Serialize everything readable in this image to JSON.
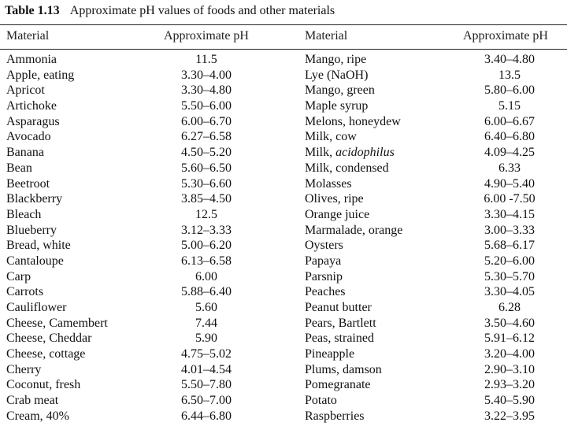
{
  "caption": {
    "label": "Table 1.13",
    "title": "Approximate pH values of foods and other materials"
  },
  "headers": {
    "material_left": "Material",
    "ph_left": "Approximate pH",
    "material_right": "Material",
    "ph_right": "Approximate pH"
  },
  "rows": [
    {
      "m1": "Ammonia",
      "p1": "11.5",
      "m2": "Mango, ripe",
      "p2": "3.40–4.80"
    },
    {
      "m1": "Apple, eating",
      "p1": "3.30–4.00",
      "m2": "Lye (NaOH)",
      "p2": "13.5"
    },
    {
      "m1": "Apricot",
      "p1": "3.30–4.80",
      "m2": "Mango, green",
      "p2": "5.80–6.00"
    },
    {
      "m1": "Artichoke",
      "p1": "5.50–6.00",
      "m2": "Maple syrup",
      "p2": "5.15"
    },
    {
      "m1": "Asparagus",
      "p1": "6.00–6.70",
      "m2": "Melons, honeydew",
      "p2": "6.00–6.67"
    },
    {
      "m1": "Avocado",
      "p1": "6.27–6.58",
      "m2": "Milk, cow",
      "p2": "6.40–6.80"
    },
    {
      "m1": "Banana",
      "p1": "4.50–5.20",
      "m2": "Milk, ",
      "m2_em": "acidophilus",
      "p2": "4.09–4.25"
    },
    {
      "m1": "Bean",
      "p1": "5.60–6.50",
      "m2": "Milk, condensed",
      "p2": "6.33"
    },
    {
      "m1": "Beetroot",
      "p1": "5.30–6.60",
      "m2": "Molasses",
      "p2": "4.90–5.40"
    },
    {
      "m1": "Blackberry",
      "p1": "3.85–4.50",
      "m2": "Olives, ripe",
      "p2": "6.00 -7.50"
    },
    {
      "m1": "Bleach",
      "p1": "12.5",
      "m2": "Orange juice",
      "p2": "3.30–4.15"
    },
    {
      "m1": "Blueberry",
      "p1": "3.12–3.33",
      "m2": "Marmalade, orange",
      "p2": "3.00–3.33"
    },
    {
      "m1": "Bread, white",
      "p1": "5.00–6.20",
      "m2": "Oysters",
      "p2": "5.68–6.17"
    },
    {
      "m1": "Cantaloupe",
      "p1": "6.13–6.58",
      "m2": "Papaya",
      "p2": "5.20–6.00"
    },
    {
      "m1": "Carp",
      "p1": "6.00",
      "m2": "Parsnip",
      "p2": "5.30–5.70"
    },
    {
      "m1": "Carrots",
      "p1": "5.88–6.40",
      "m2": "Peaches",
      "p2": "3.30–4.05"
    },
    {
      "m1": "Cauliflower",
      "p1": "5.60",
      "m2": "Peanut butter",
      "p2": "6.28"
    },
    {
      "m1": "Cheese, Camembert",
      "p1": "7.44",
      "m2": "Pears, Bartlett",
      "p2": "3.50–4.60"
    },
    {
      "m1": "Cheese, Cheddar",
      "p1": "5.90",
      "m2": "Peas, strained",
      "p2": "5.91–6.12"
    },
    {
      "m1": "Cheese, cottage",
      "p1": "4.75–5.02",
      "m2": "Pineapple",
      "p2": "3.20–4.00"
    },
    {
      "m1": "Cherry",
      "p1": "4.01–4.54",
      "m2": "Plums, damson",
      "p2": "2.90–3.10"
    },
    {
      "m1": "Coconut, fresh",
      "p1": "5.50–7.80",
      "m2": "Pomegranate",
      "p2": "2.93–3.20"
    },
    {
      "m1": "Crab meat",
      "p1": "6.50–7.00",
      "m2": "Potato",
      "p2": "5.40–5.90"
    },
    {
      "m1": "Cream, 40%",
      "p1": "6.44–6.80",
      "m2": "Raspberries",
      "p2": "3.22–3.95"
    }
  ]
}
